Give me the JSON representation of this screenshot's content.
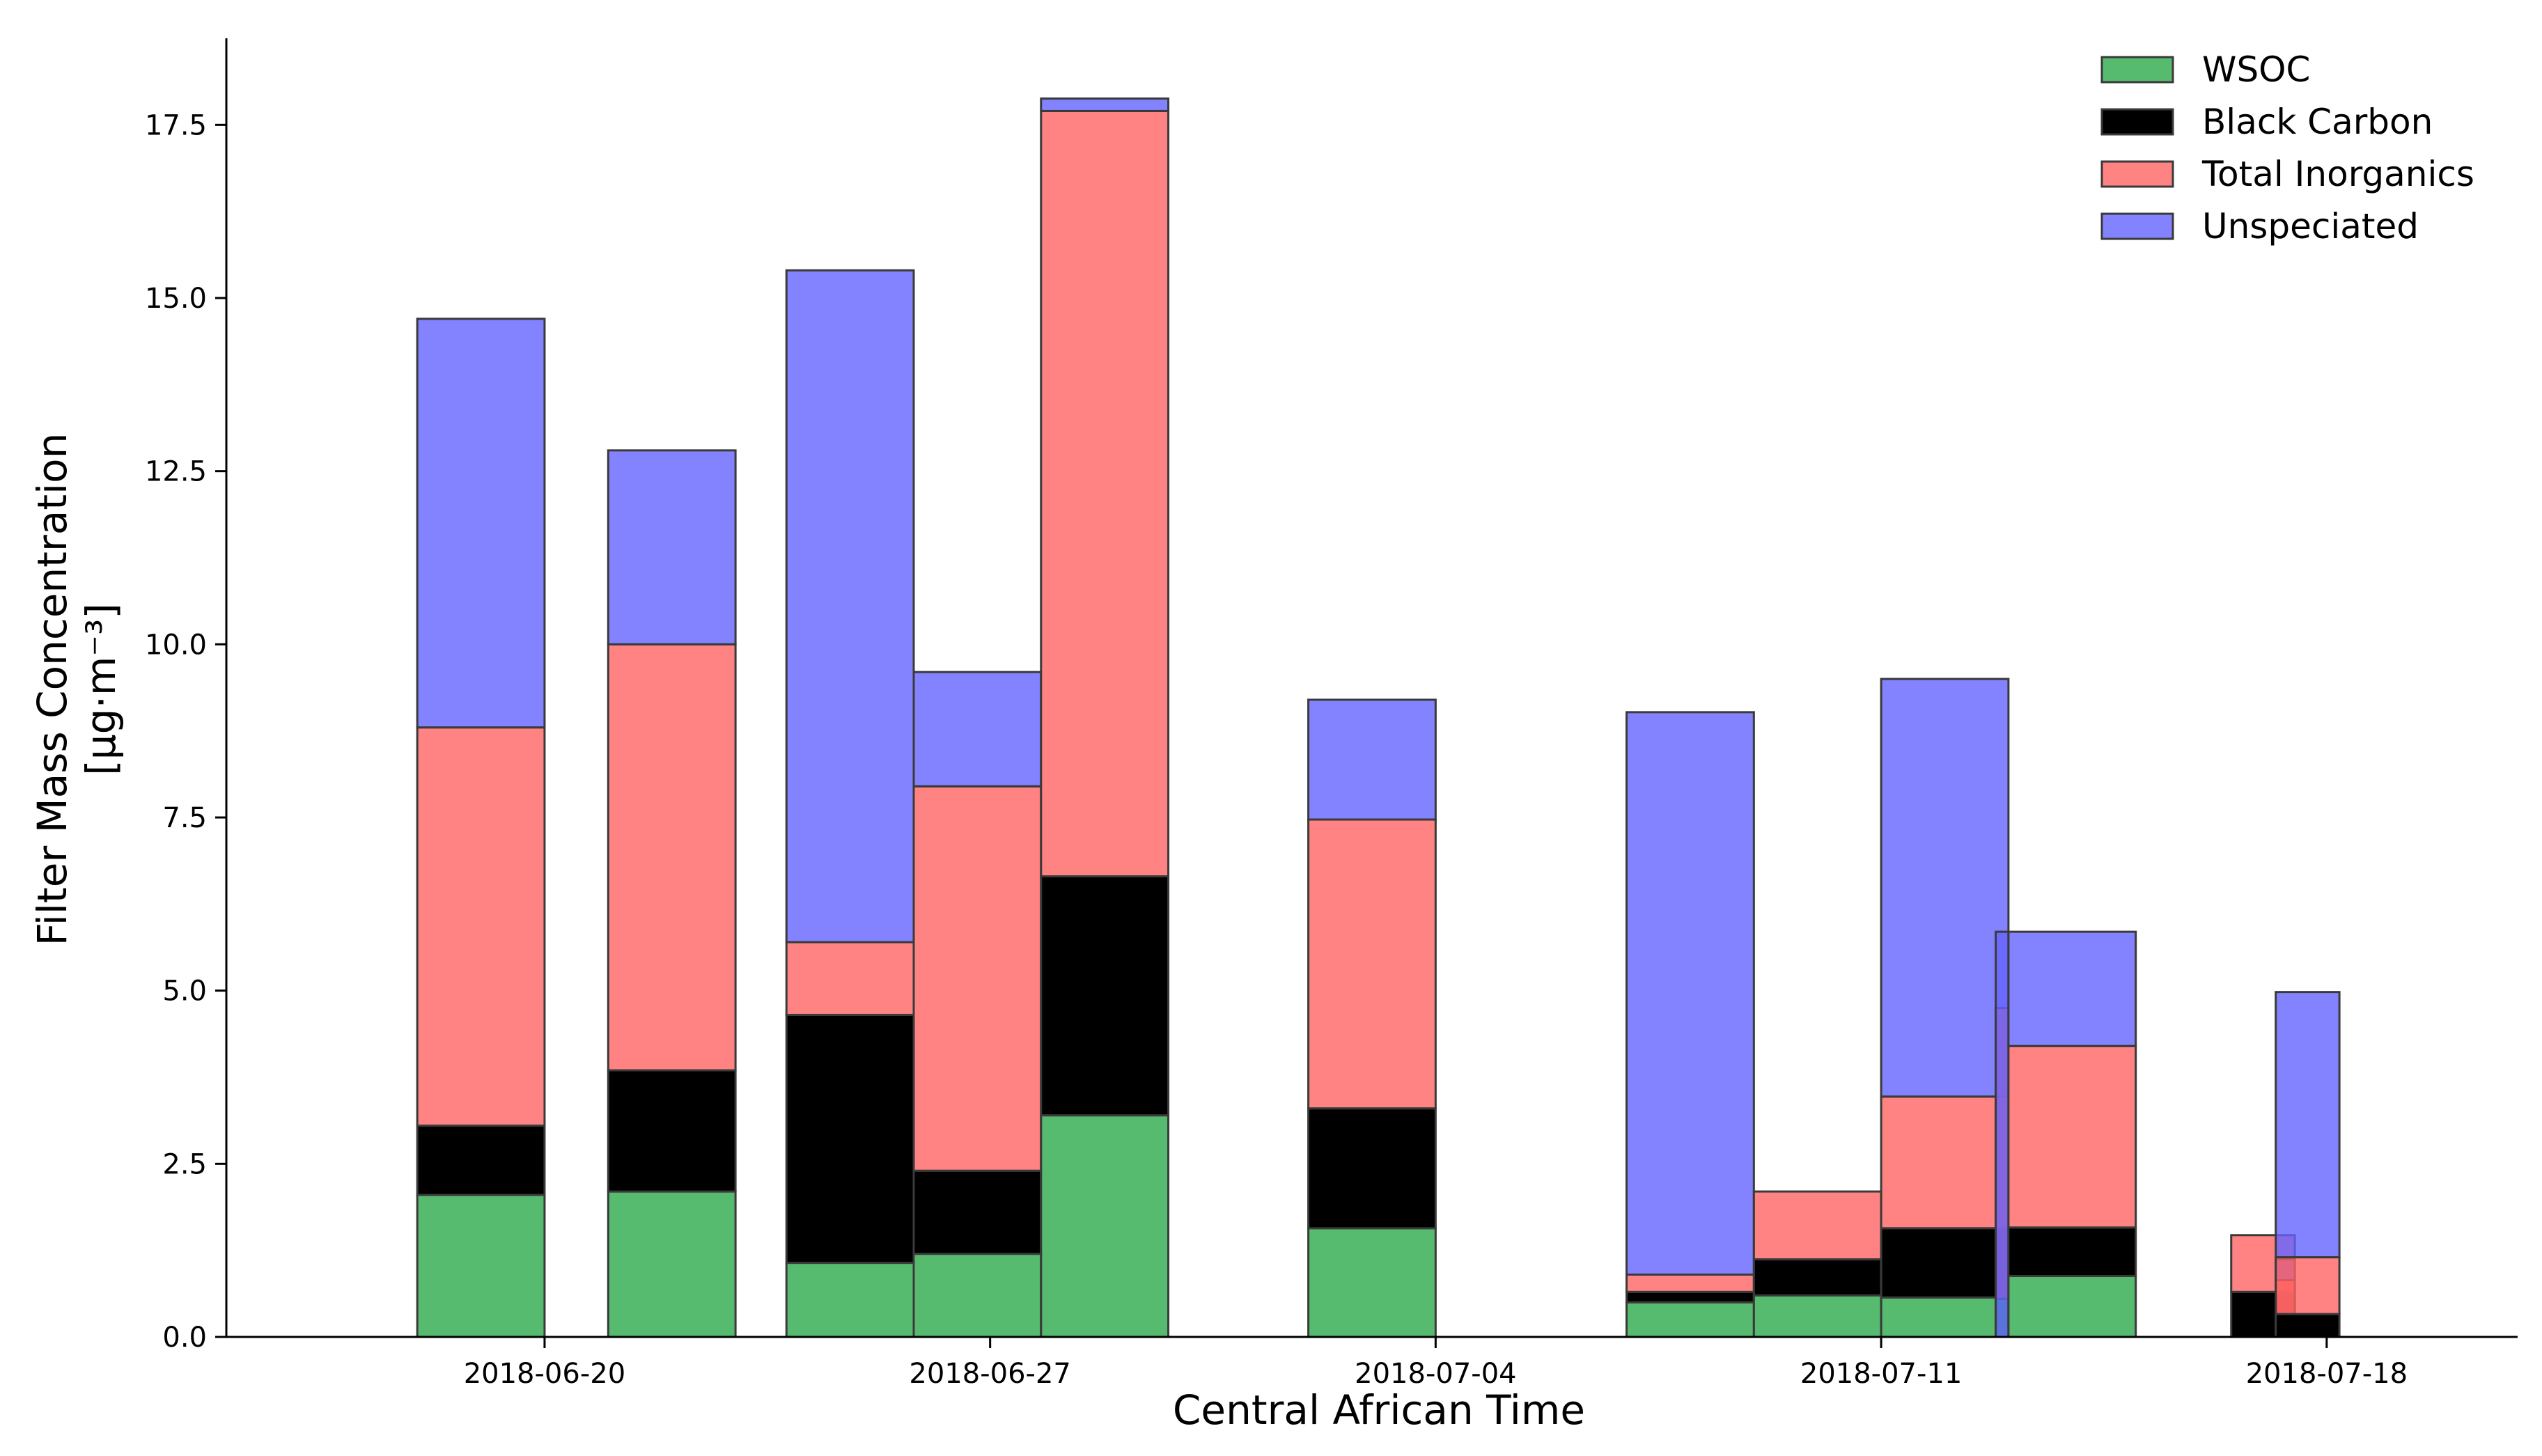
{
  "chart_data": {
    "type": "bar",
    "stacked": true,
    "xlabel": "Central African Time",
    "ylabel": [
      "Filter Mass Concentration",
      "[μg·m⁻³]"
    ],
    "ylim": [
      0,
      18.75
    ],
    "xlim": [
      "2018-06-15",
      "2018-07-21"
    ],
    "xticks": [
      "2018-06-20",
      "2018-06-27",
      "2018-07-04",
      "2018-07-11",
      "2018-07-18"
    ],
    "yticks": [
      "0.0",
      "2.5",
      "5.0",
      "7.5",
      "10.0",
      "12.5",
      "15.0",
      "17.5"
    ],
    "grid": false,
    "legend_position": "top-right",
    "series": [
      {
        "name": "WSOC",
        "color": "#2ca94b",
        "opacity": 0.8
      },
      {
        "name": "Black Carbon",
        "color": "#000000",
        "opacity": 1.0
      },
      {
        "name": "Total Inorganics",
        "color": "#ff6464",
        "opacity": 0.8
      },
      {
        "name": "Unspeciated",
        "color": "#6464ff",
        "opacity": 0.8
      }
    ],
    "samples": [
      {
        "start": "2018-06-18",
        "end": "2018-06-20",
        "values": [
          2.05,
          1.0,
          5.75,
          5.9
        ]
      },
      {
        "start": "2018-06-21",
        "end": "2018-06-23",
        "values": [
          2.1,
          1.75,
          6.15,
          2.8
        ]
      },
      {
        "start": "2018-06-23.8",
        "end": "2018-06-25.8",
        "values": [
          1.07,
          3.58,
          1.05,
          9.7
        ]
      },
      {
        "start": "2018-06-25.8",
        "end": "2018-06-27.8",
        "values": [
          1.2,
          1.2,
          5.55,
          1.65
        ]
      },
      {
        "start": "2018-06-27.8",
        "end": "2018-06-29.8",
        "values": [
          3.2,
          3.45,
          11.05,
          0.18
        ]
      },
      {
        "start": "2018-07-02",
        "end": "2018-07-04",
        "values": [
          1.57,
          1.73,
          4.17,
          1.73
        ]
      },
      {
        "start": "2018-07-07",
        "end": "2018-07-09",
        "values": [
          0.5,
          0.15,
          0.25,
          8.12
        ]
      },
      {
        "start": "2018-07-09",
        "end": "2018-07-11",
        "values": [
          0.6,
          0.52,
          0.98,
          0
        ]
      },
      {
        "start": "2018-07-11",
        "end": "2018-07-13",
        "values": [
          0.57,
          1.0,
          1.9,
          6.03
        ]
      },
      {
        "start": "2018-07-12.8",
        "end": "2018-07-13",
        "values": [
          0.55,
          0,
          4.2,
          0
        ]
      },
      {
        "start": "2018-07-12.8",
        "end": "2018-07-13",
        "values": [
          0,
          0,
          0,
          5.85
        ]
      },
      {
        "start": "2018-07-13",
        "end": "2018-07-15",
        "values": [
          0.88,
          0.7,
          2.62,
          1.65
        ]
      },
      {
        "start": "2018-07-16.5",
        "end": "2018-07-17.5",
        "values": [
          0,
          0.65,
          0.82,
          0
        ]
      },
      {
        "start": "2018-07-17.2",
        "end": "2018-07-17.5",
        "values": [
          0,
          0,
          0.82,
          0.3
        ]
      },
      {
        "start": "2018-07-17.2",
        "end": "2018-07-18.2",
        "values": [
          0,
          0.33,
          0.82,
          3.83
        ]
      }
    ]
  }
}
